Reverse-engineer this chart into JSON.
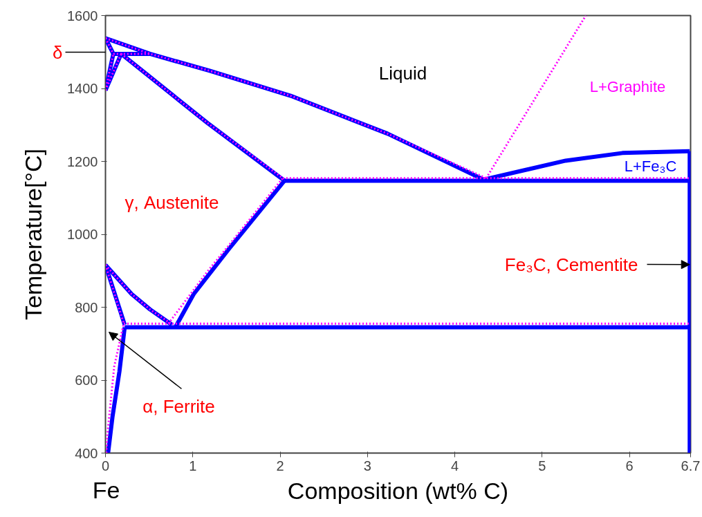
{
  "chart_data": {
    "type": "line",
    "xlabel": "Composition (wt% C)",
    "ylabel": "Temperature[°C]",
    "xlim": [
      0,
      6.7
    ],
    "ylim": [
      400,
      1600
    ],
    "xticks": [
      0,
      1,
      2,
      3,
      4,
      5,
      6,
      6.7
    ],
    "yticks": [
      400,
      600,
      800,
      1000,
      1200,
      1400,
      1600
    ],
    "grid": false,
    "marker": "none",
    "series": [
      {
        "color": "#0000ff",
        "line_style": "solid",
        "x": [
          0,
          0.51,
          1.2,
          2.12,
          3.23,
          4.33
        ],
        "values": [
          1538,
          1495,
          1448,
          1380,
          1276,
          1150
        ]
      },
      {
        "color": "#0000ff",
        "line_style": "solid",
        "x": [
          0,
          0.09
        ],
        "values": [
          1538,
          1495
        ]
      },
      {
        "color": "#0000ff",
        "line_style": "solid",
        "x": [
          0,
          0.09
        ],
        "values": [
          1395,
          1495
        ]
      },
      {
        "color": "#0000ff",
        "line_style": "solid",
        "x": [
          0,
          0.18
        ],
        "values": [
          1395,
          1495
        ]
      },
      {
        "color": "#0000ff",
        "line_style": "solid",
        "x": [
          0.09,
          0.51
        ],
        "values": [
          1495,
          1495
        ]
      },
      {
        "color": "#0000ff",
        "line_style": "solid",
        "x": [
          0.18,
          1.17,
          2.05
        ],
        "values": [
          1495,
          1305,
          1147
        ]
      },
      {
        "color": "#0000ff",
        "line_style": "solid",
        "x": [
          2.05,
          6.69
        ],
        "values": [
          1147,
          1147
        ]
      },
      {
        "color": "#0000ff",
        "line_style": "solid",
        "x": [
          0.8,
          1.01,
          1.41,
          2.05
        ],
        "values": [
          745,
          836,
          959,
          1147
        ]
      },
      {
        "color": "#0000ff",
        "line_style": "solid",
        "x": [
          0,
          0.3,
          0.51,
          0.76
        ],
        "values": [
          916,
          836,
          794,
          752
        ]
      },
      {
        "color": "#0000ff",
        "line_style": "solid",
        "x": [
          0,
          0.22
        ],
        "values": [
          916,
          752
        ]
      },
      {
        "color": "#0000ff",
        "line_style": "solid",
        "x": [
          0.22,
          6.69
        ],
        "values": [
          745,
          745
        ]
      },
      {
        "color": "#0000ff",
        "line_style": "solid",
        "x": [
          0.03,
          0.08,
          0.16,
          0.22
        ],
        "values": [
          400,
          499,
          624,
          745
        ]
      },
      {
        "color": "#0000ff",
        "line_style": "solid",
        "x": [
          4.33,
          5.27,
          5.92,
          6.69
        ],
        "values": [
          1150,
          1202,
          1223,
          1228
        ]
      },
      {
        "color": "#0000ff",
        "line_style": "solid",
        "x": [
          6.69,
          6.69
        ],
        "values": [
          400,
          1228
        ]
      },
      {
        "color": "#ff00ff",
        "line_style": "dotted",
        "x": [
          0,
          0.51,
          1.2,
          2.12,
          3.23,
          4.36
        ],
        "values": [
          1538,
          1495,
          1448,
          1380,
          1276,
          1154
        ]
      },
      {
        "color": "#ff00ff",
        "line_style": "dotted",
        "x": [
          0,
          0.09
        ],
        "values": [
          1538,
          1495
        ]
      },
      {
        "color": "#ff00ff",
        "line_style": "dotted",
        "x": [
          0,
          0.09
        ],
        "values": [
          1395,
          1495
        ]
      },
      {
        "color": "#ff00ff",
        "line_style": "dotted",
        "x": [
          0,
          0.18
        ],
        "values": [
          1395,
          1495
        ]
      },
      {
        "color": "#ff00ff",
        "line_style": "dotted",
        "x": [
          0.09,
          0.51
        ],
        "values": [
          1495,
          1495
        ]
      },
      {
        "color": "#ff00ff",
        "line_style": "dotted",
        "x": [
          0.18,
          1.17,
          2.03
        ],
        "values": [
          1495,
          1305,
          1154
        ]
      },
      {
        "color": "#ff00ff",
        "line_style": "dotted",
        "x": [
          2.03,
          6.7
        ],
        "values": [
          1154,
          1154
        ]
      },
      {
        "color": "#ff00ff",
        "line_style": "dotted",
        "x": [
          0.72,
          1.17,
          1.41,
          2.03
        ],
        "values": [
          755,
          899,
          969,
          1154
        ]
      },
      {
        "color": "#ff00ff",
        "line_style": "dotted",
        "x": [
          0,
          0.3,
          0.51,
          0.75
        ],
        "values": [
          916,
          836,
          794,
          755
        ]
      },
      {
        "color": "#ff00ff",
        "line_style": "dotted",
        "x": [
          0,
          0.21
        ],
        "values": [
          916,
          755
        ]
      },
      {
        "color": "#ff00ff",
        "line_style": "dotted",
        "x": [
          0.21,
          6.7
        ],
        "values": [
          755,
          755
        ]
      },
      {
        "color": "#ff00ff",
        "line_style": "dotted",
        "x": [
          0.01,
          0.02,
          0.1,
          0.21
        ],
        "values": [
          400,
          447,
          637,
          756
        ]
      },
      {
        "color": "#ff00ff",
        "line_style": "dotted",
        "x": [
          4.36,
          5.5
        ],
        "values": [
          1154,
          1600
        ]
      }
    ],
    "annotations": [
      "Liquid",
      "L+Graphite",
      "L+Fe₃C",
      "γ, Austenite",
      {
        "text": "Fe₃C, Cementite",
        "x": 6.69,
        "y": 917
      },
      "α, Ferrite",
      "δ",
      "Fe"
    ]
  }
}
